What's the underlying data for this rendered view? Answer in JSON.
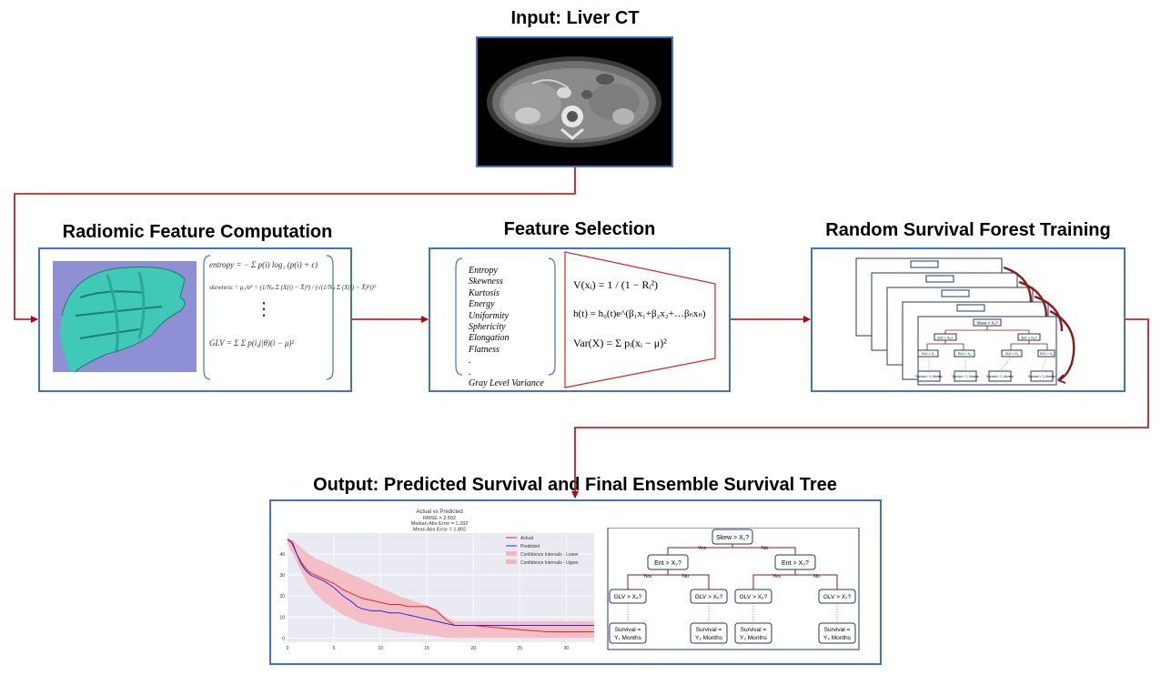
{
  "titles": {
    "input": "Input: Liver CT",
    "radiomic": "Radiomic Feature Computation",
    "selection": "Feature Selection",
    "rsf": "Random Survival Forest Training",
    "output": "Output: Predicted Survival and Final Ensemble Survival Tree"
  },
  "radiomic_equations": {
    "entropy": "entropy = − Σ p(i) log₂ (p(i) + ϵ)",
    "skewness": "skewness = μ₃/σ³ = (1/Nₚ Σ (X(i) − X̄)³) / (√(1/Nₚ Σ (X(i) − X̄)²))³",
    "dots": "⋮",
    "glv": "GLV = Σ Σ p(i,j|θ)(i − μ)²"
  },
  "features": [
    "Entropy",
    "Skewness",
    "Kurtosis",
    "Energy",
    "Uniformity",
    "Sphericity",
    "Elongation",
    "Flatness",
    ".",
    ".",
    "Gray Level Variance"
  ],
  "selection_equations": {
    "v": "V(xᵢ) = 1 / (1 − Rᵢ²)",
    "h": "h(t) = h₀(t)e^(β₁x₁+β₂x₂+…βₙxₙ)",
    "var": "Var(X) = Σ pᵢ(xᵢ − μ)²"
  },
  "rsf_tree": {
    "root": "Skew > X₁?",
    "n1": "Ent > X₂?",
    "n2": "Ent > X₃?",
    "leaf1": "GLV > X₁",
    "leaf2": "GLV > X₂",
    "leaf3": "GLV > X₃",
    "leaf4": "GLV > X₄",
    "surv1": "Survival = Y₁ Months",
    "surv2": "Survival = Y₂ Months",
    "surv3": "Survival = Y₃ Months",
    "surv4": "Survival = Y₄ Months",
    "yes": "Yes",
    "no": "No"
  },
  "final_tree": {
    "root": "Skew > X₁?",
    "left": "Ent > X₂?",
    "right": "Ent > X₃?",
    "ll": "GLV > X₄?",
    "lr": "GLV > X₅?",
    "rl": "GLV > X₆?",
    "rr": "GLV > X₇?",
    "s1a": "Survival =",
    "s1b": "Y₁ Months",
    "s2a": "Survival =",
    "s2b": "Y₂ Months",
    "s3a": "Survival =",
    "s3b": "Y₃ Months",
    "s4a": "Survival =",
    "s4b": "Y₄ Months",
    "yes": "Yes",
    "no": "No"
  },
  "colors": {
    "panel_border": "#4472c4",
    "arrow": "#c00000",
    "tree_line": "#8b1a1a",
    "actual": "#e8262a",
    "predicted": "#2b2bd6",
    "ci": "#f4b6bd",
    "chart_bg": "#eaeaf2"
  },
  "chart_data": {
    "type": "line",
    "title": "Actual vs Predicted",
    "subtitle_lines": [
      "RMSE = 2.502",
      "Median Abs Error = 1.292",
      "Mean Abs Error = 1.892"
    ],
    "xlim": [
      0,
      33
    ],
    "ylim": [
      -2,
      50
    ],
    "xticks": [
      0,
      5,
      10,
      15,
      20,
      25,
      30
    ],
    "yticks": [
      0,
      10,
      20,
      30,
      40
    ],
    "legend_position": "upper-right",
    "grid": true,
    "series": [
      {
        "name": "Actual",
        "type": "line",
        "x": [
          0,
          0.5,
          1,
          1.5,
          2,
          2.5,
          3,
          3.5,
          4,
          5,
          6,
          7,
          7.5,
          8,
          9,
          10,
          11,
          12,
          13,
          14,
          15,
          16,
          17,
          18,
          20,
          25,
          28,
          30,
          33
        ],
        "y": [
          47,
          46,
          40,
          36,
          33,
          31,
          30,
          29,
          28,
          26,
          23,
          21,
          20,
          19,
          18,
          17,
          16,
          16,
          15,
          15,
          15,
          13,
          9,
          6,
          6,
          4,
          3,
          3,
          3
        ]
      },
      {
        "name": "Predicted",
        "type": "line",
        "x": [
          0,
          0.5,
          1,
          1.5,
          2,
          2.5,
          3,
          3.5,
          4,
          5,
          6,
          7,
          7.5,
          8,
          9,
          10,
          11,
          12,
          13,
          14,
          15,
          16,
          17,
          18,
          20,
          25,
          28,
          30,
          33
        ],
        "y": [
          47,
          45,
          40,
          35,
          32,
          30,
          29,
          28,
          27,
          24,
          20,
          17,
          15,
          14,
          13,
          13,
          12,
          12,
          11,
          10,
          9,
          8,
          7,
          6,
          6,
          6,
          6,
          6,
          6
        ]
      },
      {
        "name": "Confidence Intervals - Lower",
        "x": [
          0,
          1,
          2,
          3,
          4,
          5,
          6,
          7,
          8,
          10,
          12,
          14,
          16,
          17,
          18,
          20,
          33
        ],
        "y": [
          45,
          36,
          27,
          21,
          17,
          14,
          11,
          9,
          7,
          5,
          3,
          2,
          1,
          0,
          0,
          0,
          0
        ]
      },
      {
        "name": "Confidence Intervals - Upper",
        "x": [
          0,
          1,
          2,
          3,
          4,
          5,
          6,
          7,
          8,
          10,
          12,
          14,
          16,
          17,
          18,
          20,
          33
        ],
        "y": [
          48,
          45,
          41,
          38,
          36,
          34,
          32,
          30,
          28,
          24,
          20,
          17,
          14,
          10,
          8,
          8,
          8
        ]
      }
    ]
  }
}
